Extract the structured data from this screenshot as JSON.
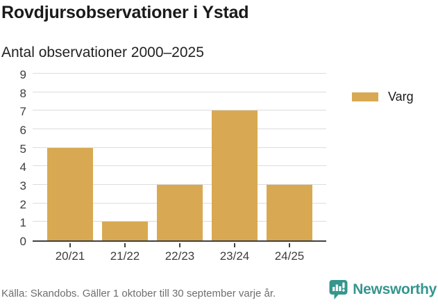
{
  "header": {
    "title": "Rovdjursobservationer i Ystad",
    "subtitle": "Antal observationer 2000–2025"
  },
  "chart_data": {
    "type": "bar",
    "categories": [
      "20/21",
      "21/22",
      "22/23",
      "23/24",
      "24/25"
    ],
    "series": [
      {
        "name": "Varg",
        "color": "#d8a952",
        "values": [
          5,
          1,
          3,
          7,
          3
        ]
      }
    ],
    "title": "Rovdjursobservationer i Ystad",
    "subtitle": "Antal observationer 2000–2025",
    "xlabel": "",
    "ylabel": "",
    "ylim": [
      0,
      9
    ],
    "yticks": [
      0,
      1,
      2,
      3,
      4,
      5,
      6,
      7,
      8,
      9
    ],
    "grid": true,
    "legend_position": "right",
    "gridline_color": "#dcdcdc",
    "axis_color": "#404040",
    "tick_label_color": "#3d3d3d"
  },
  "footer": {
    "source": "Källa: Skandobs. Gäller 1 oktober till 30 september varje år.",
    "brand": "Newsworthy",
    "brand_color": "#35968e"
  }
}
